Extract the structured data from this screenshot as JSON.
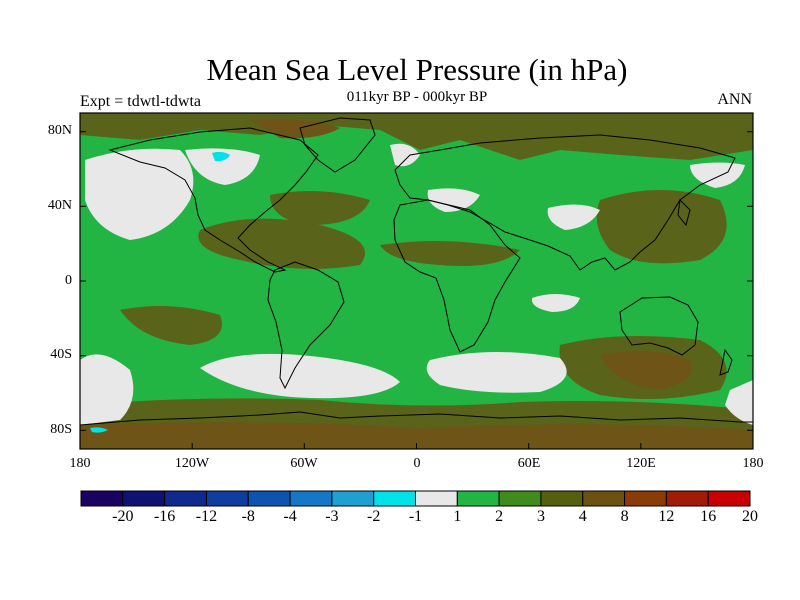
{
  "header": {
    "title": "Mean Sea Level Pressure (in hPa)",
    "subtitle": "011kyr BP - 000kyr BP",
    "experiment": "Expt = tdwtl-tdwta",
    "season": "ANN"
  },
  "map": {
    "projection": "cylindrical equidistant",
    "lat_labels": [
      "80N",
      "40N",
      "0",
      "40S",
      "80S"
    ],
    "lon_labels": [
      "180",
      "120W",
      "60W",
      "0",
      "60E",
      "120E",
      "180"
    ],
    "background_level_color": "#22b544"
  },
  "colorbar": {
    "labels": [
      "-20",
      "-16",
      "-12",
      "-8",
      "-4",
      "-3",
      "-2",
      "-1",
      "1",
      "2",
      "3",
      "4",
      "8",
      "12",
      "16",
      "20"
    ],
    "colors": [
      "#1a0060",
      "#0e1373",
      "#0f2a8c",
      "#103ea0",
      "#0b55b0",
      "#1577c8",
      "#1fa0d2",
      "#00e1ea",
      "#e8e8e8",
      "#22b544",
      "#3f8c1c",
      "#555f0e",
      "#6c5210",
      "#8a3b08",
      "#a01c05",
      "#c80000"
    ]
  }
}
